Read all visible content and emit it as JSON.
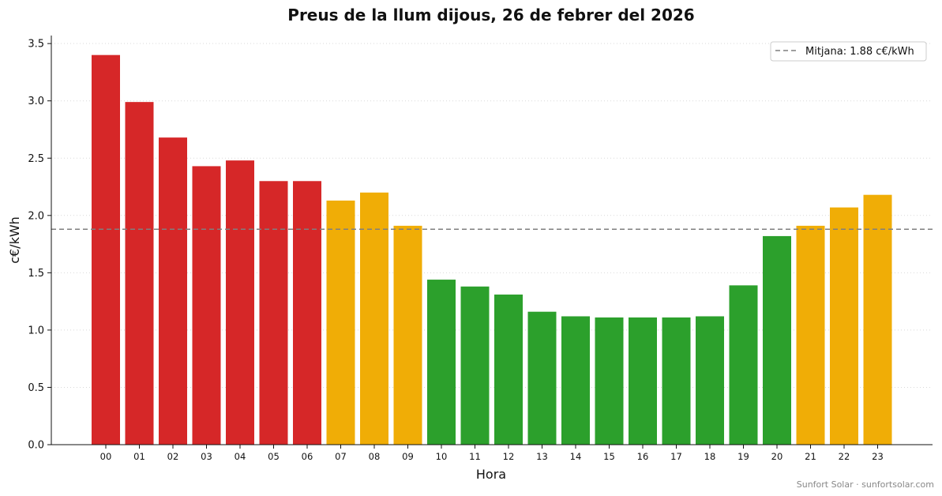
{
  "chart_data": {
    "type": "bar",
    "title": "Preus de la llum dijous, 26 de febrer del 2026",
    "xlabel": "Hora",
    "ylabel": "c€/kWh",
    "ylim": [
      0,
      3.57
    ],
    "yticks": [
      "0.0",
      "0.5",
      "1.0",
      "1.5",
      "2.0",
      "2.5",
      "3.0",
      "3.5"
    ],
    "categories": [
      "00",
      "01",
      "02",
      "03",
      "04",
      "05",
      "06",
      "07",
      "08",
      "09",
      "10",
      "11",
      "12",
      "13",
      "14",
      "15",
      "16",
      "17",
      "18",
      "19",
      "20",
      "21",
      "22",
      "23"
    ],
    "values": [
      3.4,
      2.99,
      2.68,
      2.43,
      2.48,
      2.3,
      2.3,
      2.13,
      2.2,
      1.91,
      1.44,
      1.38,
      1.31,
      1.16,
      1.12,
      1.11,
      1.11,
      1.11,
      1.12,
      1.39,
      1.82,
      1.91,
      2.07,
      2.18
    ],
    "bar_levels": [
      "high",
      "high",
      "high",
      "high",
      "high",
      "high",
      "high",
      "mid",
      "mid",
      "mid",
      "low",
      "low",
      "low",
      "low",
      "low",
      "low",
      "low",
      "low",
      "low",
      "low",
      "low",
      "mid",
      "mid",
      "mid"
    ],
    "level_colors": {
      "high": "#d62728",
      "mid": "#f0ad06",
      "low": "#2ca02c"
    },
    "mean": {
      "value": 1.88,
      "label": "Mitjana: 1.88 c€/kWh",
      "color": "#7f7f7f"
    },
    "grid": "horizontal dotted",
    "legend_position": "top-right"
  },
  "footer": "Sunfort Solar · sunfortsolar.com"
}
